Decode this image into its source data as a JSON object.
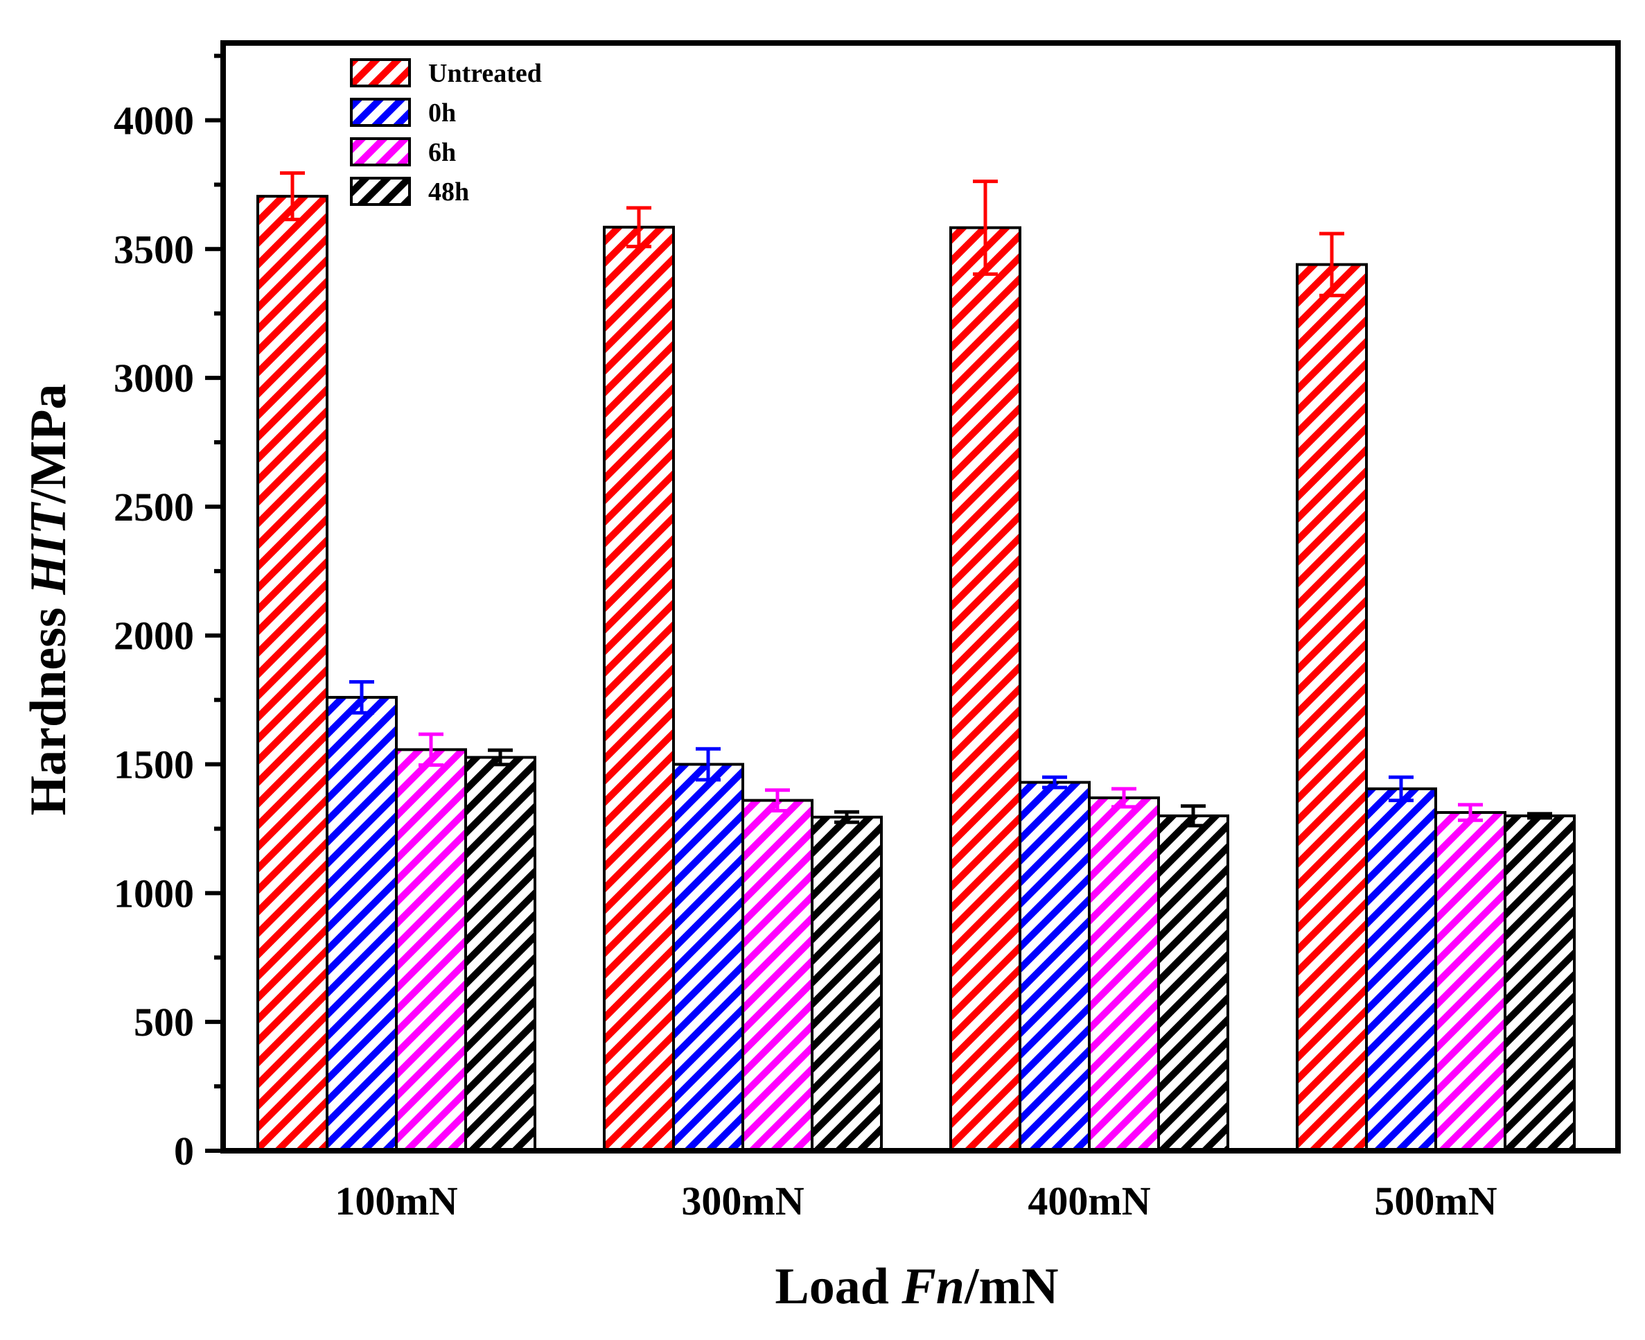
{
  "chart_data": {
    "type": "bar",
    "title": "",
    "xlabel_prefix": "Load ",
    "xlabel_italic": "Fn",
    "xlabel_suffix": "/mN",
    "ylabel_prefix": "Hardness ",
    "ylabel_italic": "HIT",
    "ylabel_suffix": "/MPa",
    "categories": [
      "100mN",
      "300mN",
      "400mN",
      "500mN"
    ],
    "ylim": [
      0,
      4300
    ],
    "yticks": [
      0,
      500,
      1000,
      1500,
      2000,
      2500,
      3000,
      3500,
      4000
    ],
    "ytick_labels": [
      "0",
      "500",
      "1000",
      "1500",
      "2000",
      "2500",
      "3000",
      "3500",
      "4000"
    ],
    "legend_position": "top-left",
    "pattern": "diagonal-hatch",
    "series": [
      {
        "name": "Untreated",
        "color": "#ff0000",
        "values": [
          3705,
          3585,
          3583,
          3440
        ],
        "errors": [
          90,
          75,
          180,
          120
        ]
      },
      {
        "name": "0h",
        "color": "#0000ff",
        "values": [
          1760,
          1500,
          1430,
          1405
        ],
        "errors": [
          60,
          60,
          20,
          45
        ]
      },
      {
        "name": "6h",
        "color": "#ff00ff",
        "values": [
          1557,
          1360,
          1370,
          1313
        ],
        "errors": [
          60,
          40,
          35,
          30
        ]
      },
      {
        "name": "48h",
        "color": "#000000",
        "values": [
          1527,
          1295,
          1300,
          1300
        ],
        "errors": [
          28,
          20,
          38,
          8
        ]
      }
    ]
  }
}
